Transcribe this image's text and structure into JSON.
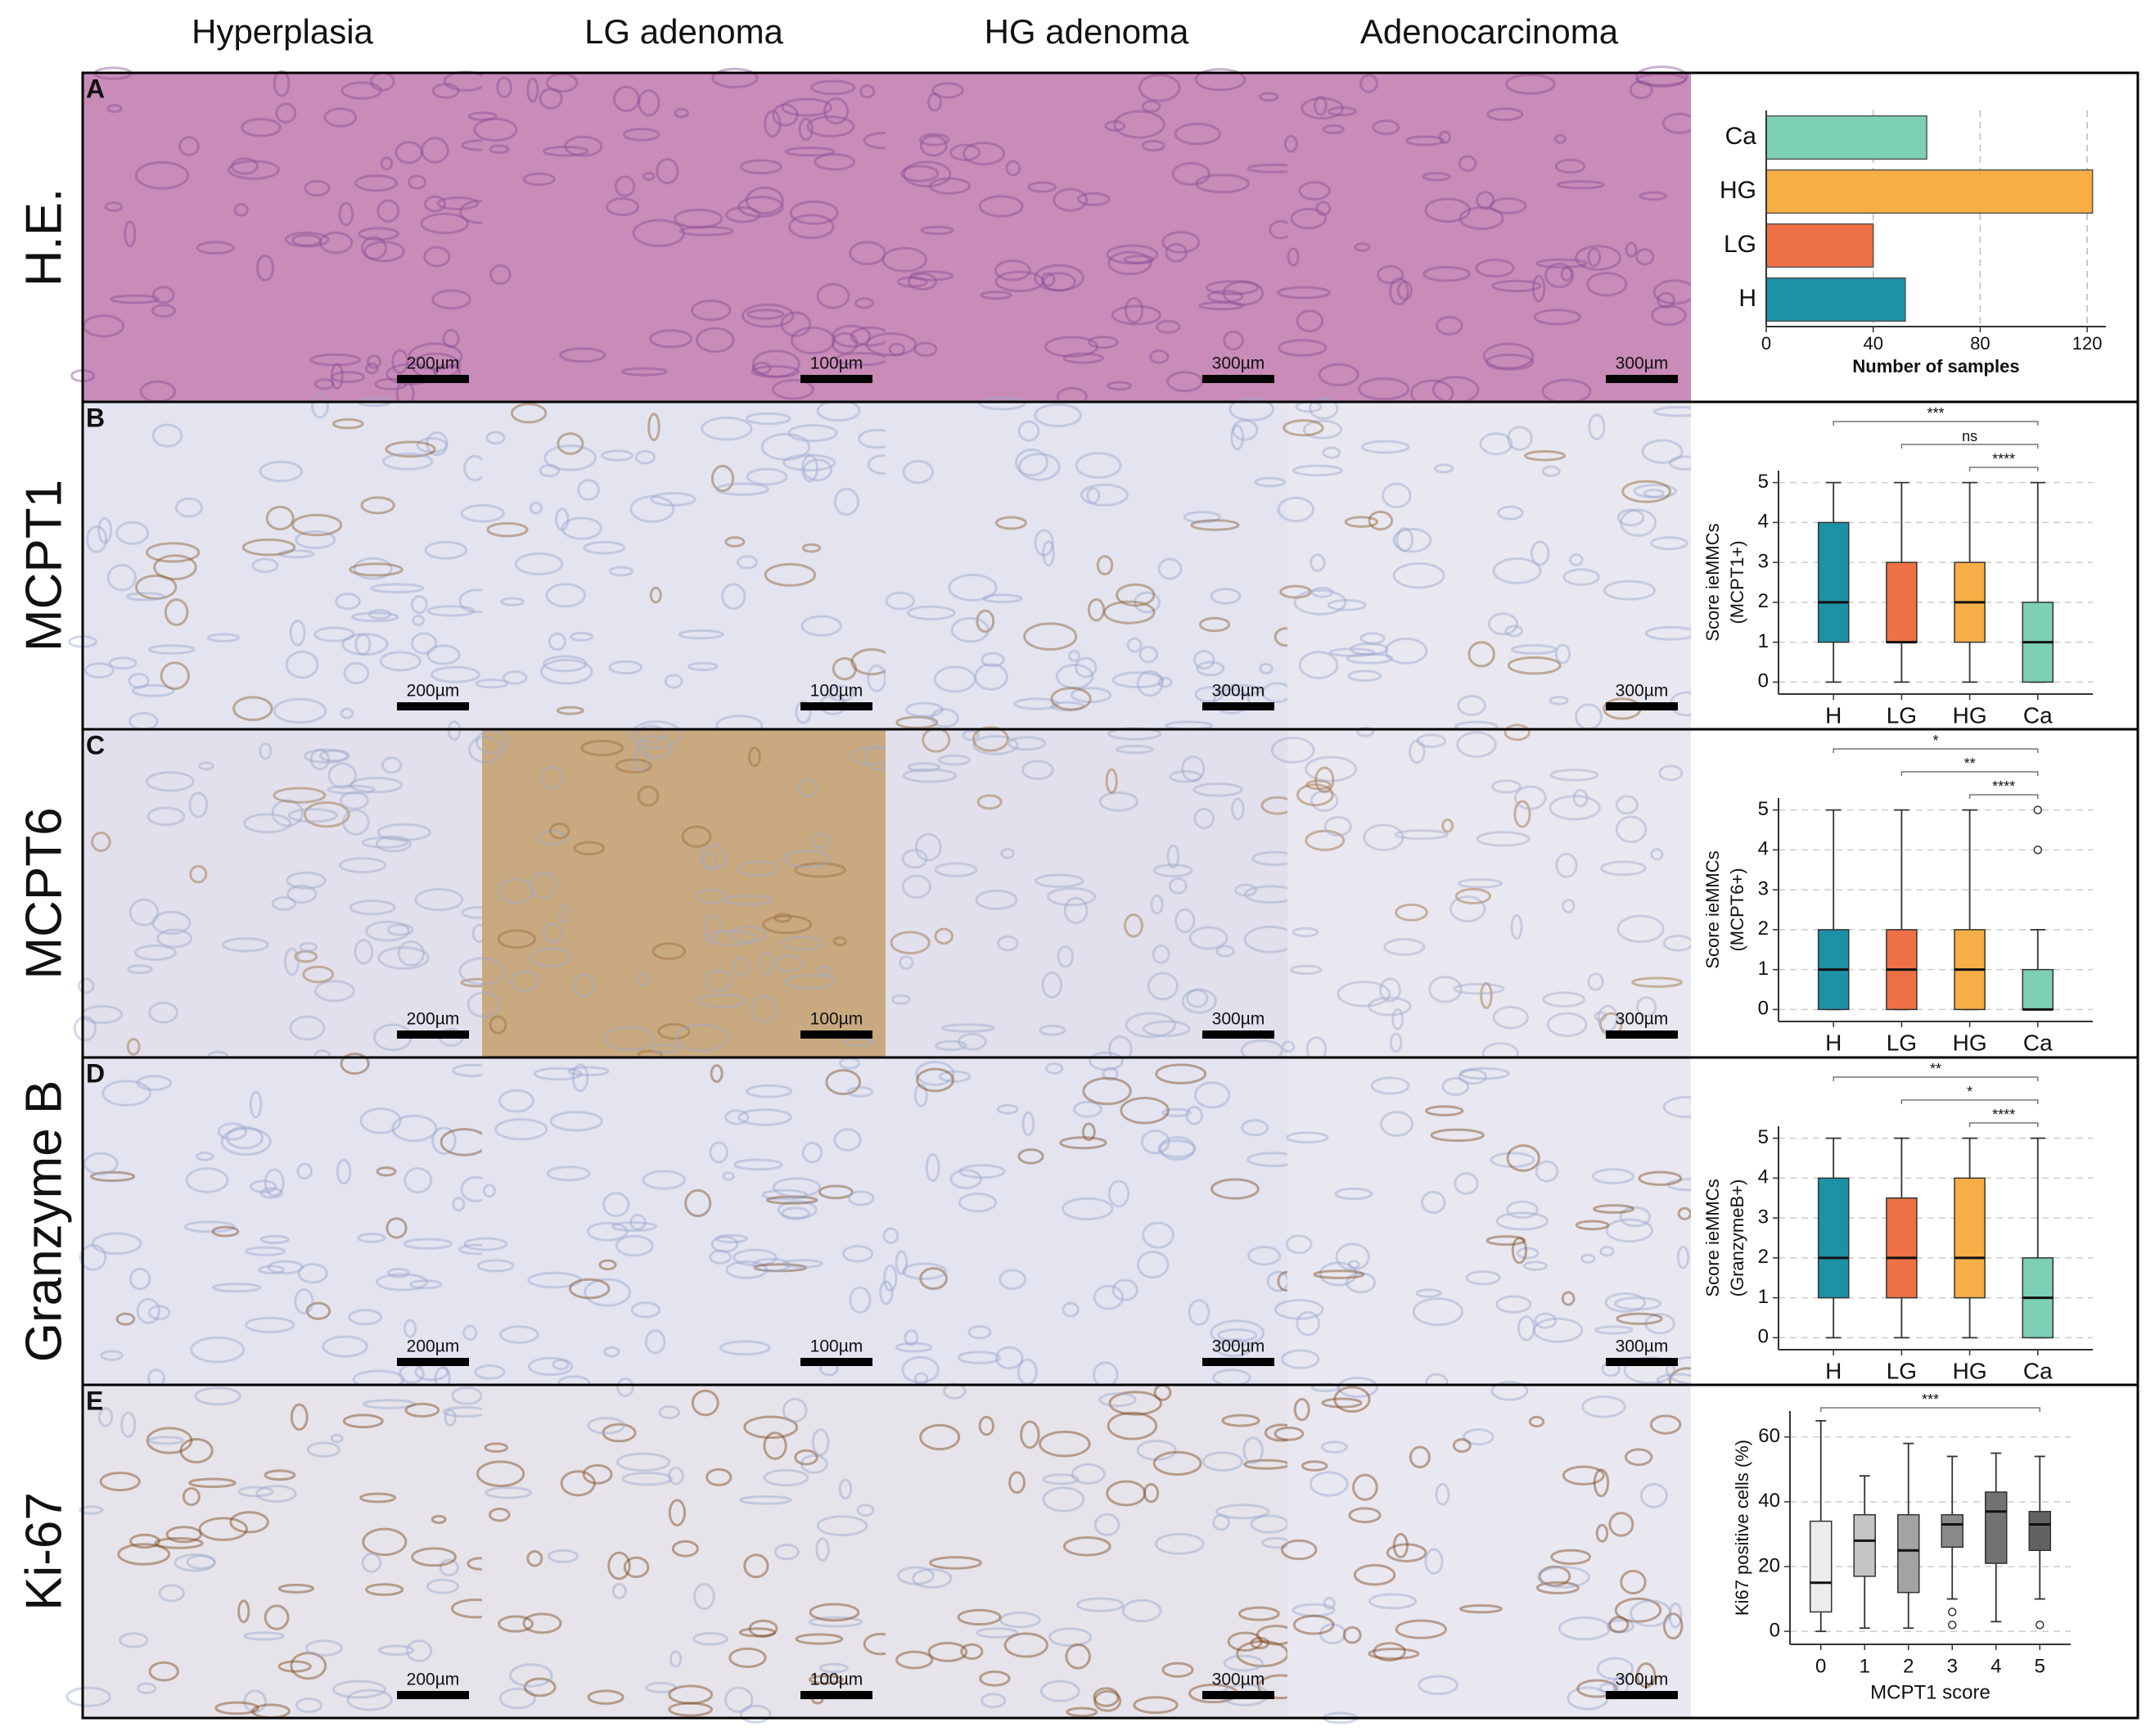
{
  "figure": {
    "columns": [
      "Hyperplasia",
      "LG adenoma",
      "HG adenoma",
      "Adenocarcinoma"
    ],
    "rows": [
      {
        "letter": "A",
        "label": "H.E.",
        "scale_bars": [
          "200µm",
          "100µm",
          "300µm",
          "300µm"
        ]
      },
      {
        "letter": "B",
        "label": "MCPT1",
        "scale_bars": [
          "200µm",
          "100µm",
          "300µm",
          "300µm"
        ]
      },
      {
        "letter": "C",
        "label": "MCPT6",
        "scale_bars": [
          "200µm",
          "100µm",
          "300µm",
          "300µm"
        ]
      },
      {
        "letter": "D",
        "label": "Granzyme B",
        "scale_bars": [
          "200µm",
          "100µm",
          "300µm",
          "300µm"
        ]
      },
      {
        "letter": "E",
        "label": "Ki-67",
        "scale_bars": [
          "200µm",
          "100µm",
          "300µm",
          "300µm"
        ]
      }
    ]
  },
  "chart_data": [
    {
      "type": "bar",
      "orientation": "horizontal",
      "categories": [
        "Ca",
        "HG",
        "LG",
        "H"
      ],
      "values": [
        60,
        122,
        40,
        52
      ],
      "colors": [
        "#7dcfb6",
        "#f6ae45",
        "#ee7145",
        "#1d91a6"
      ],
      "xlabel": "Number of samples",
      "xlim": [
        0,
        127
      ],
      "xticks": [
        0,
        40,
        80,
        120
      ],
      "grid": true
    },
    {
      "type": "box",
      "categories": [
        "H",
        "LG",
        "HG",
        "Ca"
      ],
      "colors": [
        "#1d91a6",
        "#ee7145",
        "#f6ae45",
        "#7dcfb6"
      ],
      "ylabel": [
        "Score ieMMCs",
        "(MCPT1+)"
      ],
      "ylim": [
        -0.3,
        5.3
      ],
      "yticks": [
        0,
        1,
        2,
        3,
        4,
        5
      ],
      "grid": true,
      "boxes": [
        {
          "min": 0,
          "q1": 1,
          "median": 2,
          "q3": 4,
          "max": 5,
          "outliers": []
        },
        {
          "min": 0,
          "q1": 1,
          "median": 1,
          "q3": 3,
          "max": 5,
          "outliers": []
        },
        {
          "min": 0,
          "q1": 1,
          "median": 2,
          "q3": 3,
          "max": 5,
          "outliers": []
        },
        {
          "min": 0,
          "q1": 0,
          "median": 1,
          "q3": 2,
          "max": 5,
          "outliers": []
        }
      ],
      "significance": [
        {
          "from": "H",
          "to": "Ca",
          "label": "***"
        },
        {
          "from": "LG",
          "to": "Ca",
          "label": "ns"
        },
        {
          "from": "HG",
          "to": "Ca",
          "label": "****"
        }
      ]
    },
    {
      "type": "box",
      "categories": [
        "H",
        "LG",
        "HG",
        "Ca"
      ],
      "colors": [
        "#1d91a6",
        "#ee7145",
        "#f6ae45",
        "#7dcfb6"
      ],
      "ylabel": [
        "Score ieMMCs",
        "(MCPT6+)"
      ],
      "ylim": [
        -0.3,
        5.3
      ],
      "yticks": [
        0,
        1,
        2,
        3,
        4,
        5
      ],
      "grid": true,
      "boxes": [
        {
          "min": 0,
          "q1": 0,
          "median": 1,
          "q3": 2,
          "max": 5,
          "outliers": []
        },
        {
          "min": 0,
          "q1": 0,
          "median": 1,
          "q3": 2,
          "max": 5,
          "outliers": []
        },
        {
          "min": 0,
          "q1": 0,
          "median": 1,
          "q3": 2,
          "max": 5,
          "outliers": []
        },
        {
          "min": 0,
          "q1": 0,
          "median": 0,
          "q3": 1,
          "max": 2,
          "outliers": [
            4,
            5
          ]
        }
      ],
      "significance": [
        {
          "from": "H",
          "to": "Ca",
          "label": "*"
        },
        {
          "from": "LG",
          "to": "Ca",
          "label": "**"
        },
        {
          "from": "HG",
          "to": "Ca",
          "label": "****"
        }
      ]
    },
    {
      "type": "box",
      "categories": [
        "H",
        "LG",
        "HG",
        "Ca"
      ],
      "colors": [
        "#1d91a6",
        "#ee7145",
        "#f6ae45",
        "#7dcfb6"
      ],
      "ylabel": [
        "Score ieMMCs",
        "(GranzymeB+)"
      ],
      "ylim": [
        -0.3,
        5.3
      ],
      "yticks": [
        0,
        1,
        2,
        3,
        4,
        5
      ],
      "grid": true,
      "boxes": [
        {
          "min": 0,
          "q1": 1,
          "median": 2,
          "q3": 4,
          "max": 5,
          "outliers": []
        },
        {
          "min": 0,
          "q1": 1,
          "median": 2,
          "q3": 3.5,
          "max": 5,
          "outliers": []
        },
        {
          "min": 0,
          "q1": 1,
          "median": 2,
          "q3": 4,
          "max": 5,
          "outliers": []
        },
        {
          "min": 0,
          "q1": 0,
          "median": 1,
          "q3": 2,
          "max": 5,
          "outliers": []
        }
      ],
      "significance": [
        {
          "from": "H",
          "to": "Ca",
          "label": "**"
        },
        {
          "from": "LG",
          "to": "Ca",
          "label": "*"
        },
        {
          "from": "HG",
          "to": "Ca",
          "label": "****"
        }
      ]
    },
    {
      "type": "box",
      "categories": [
        "0",
        "1",
        "2",
        "3",
        "4",
        "5"
      ],
      "colors": [
        "#ececec",
        "#c4c4c4",
        "#a3a3a3",
        "#8a8a8a",
        "#727272",
        "#626262"
      ],
      "xlabel": "MCPT1 score",
      "ylabel": "Ki67 positive cells (%)",
      "ylim": [
        -4,
        68
      ],
      "yticks": [
        0,
        20,
        40,
        60
      ],
      "grid": true,
      "boxes": [
        {
          "min": 0,
          "q1": 6,
          "median": 15,
          "q3": 34,
          "max": 65,
          "outliers": []
        },
        {
          "min": 1,
          "q1": 17,
          "median": 28,
          "q3": 36,
          "max": 48,
          "outliers": []
        },
        {
          "min": 1,
          "q1": 12,
          "median": 25,
          "q3": 36,
          "max": 58,
          "outliers": []
        },
        {
          "min": 10,
          "q1": 26,
          "median": 33,
          "q3": 36,
          "max": 54,
          "outliers": [
            6,
            2
          ]
        },
        {
          "min": 3,
          "q1": 21,
          "median": 37,
          "q3": 43,
          "max": 55,
          "outliers": []
        },
        {
          "min": 10,
          "q1": 25,
          "median": 33,
          "q3": 37,
          "max": 54,
          "outliers": [
            2
          ]
        }
      ],
      "significance": [
        {
          "from": "0",
          "to": "5",
          "label": "***"
        }
      ]
    }
  ]
}
